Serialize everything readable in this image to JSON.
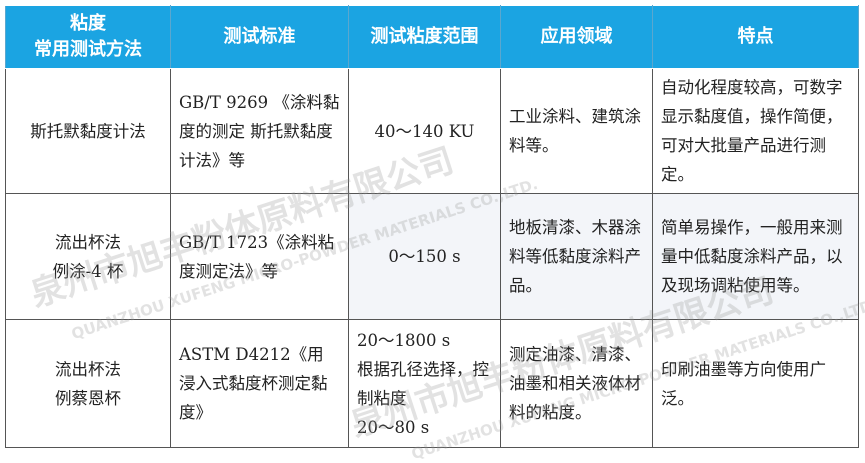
{
  "table": {
    "headers": [
      "粘度\n常用测试方法",
      "测试标准",
      "测试粘度范围",
      "应用领域",
      "特点"
    ],
    "header_lines": [
      "粘度",
      "常用测试方法"
    ],
    "rows": [
      [
        "斯托默黏度计法",
        "GB/T 9269 《涂料黏度的测定 斯托默黏度计法》等",
        "40～140 KU",
        "工业涂料、建筑涂料等。",
        "自动化程度较高，可数字显示黏度值，操作简便，可对大批量产品进行测定。"
      ],
      [
        "流出杯法\n例涂-4 杯",
        "GB/T 1723《涂料粘度测定法》等",
        "0～150 s",
        "地板清漆、木器涂料等低黏度涂料产品。",
        "简单易操作，一般用来测量中低黏度涂料产品，以及现场调粘使用等。"
      ],
      [
        "流出杯法\n例蔡恩杯",
        "ASTM D4212《用浸入式黏度杯测定黏度》",
        "20～1800 s 根据孔径选择，控制粘度 20～80 s",
        "测定油漆、清漆、油墨和相关液体材料的粘度。",
        "印刷油墨等方向使用广泛。"
      ]
    ],
    "row_method_lines": [
      [
        "斯托默黏度计法"
      ],
      [
        "流出杯法",
        "例涂-4 杯"
      ],
      [
        "流出杯法",
        "例蔡恩杯"
      ]
    ],
    "range_lines_row3": [
      "20～1800 s",
      "根据孔径选择，控制粘度",
      "20～80 s"
    ]
  },
  "watermark": {
    "cn": "泉州市旭丰粉体原料有限公司",
    "en": "QUANZHOU XUFENG MICRO-POWDER MATERIALS CO.,LTD."
  },
  "colors": {
    "header_bg": "#1ba4e2",
    "header_text": "#ffffff",
    "shaded_cell": "#f3f5f9"
  }
}
